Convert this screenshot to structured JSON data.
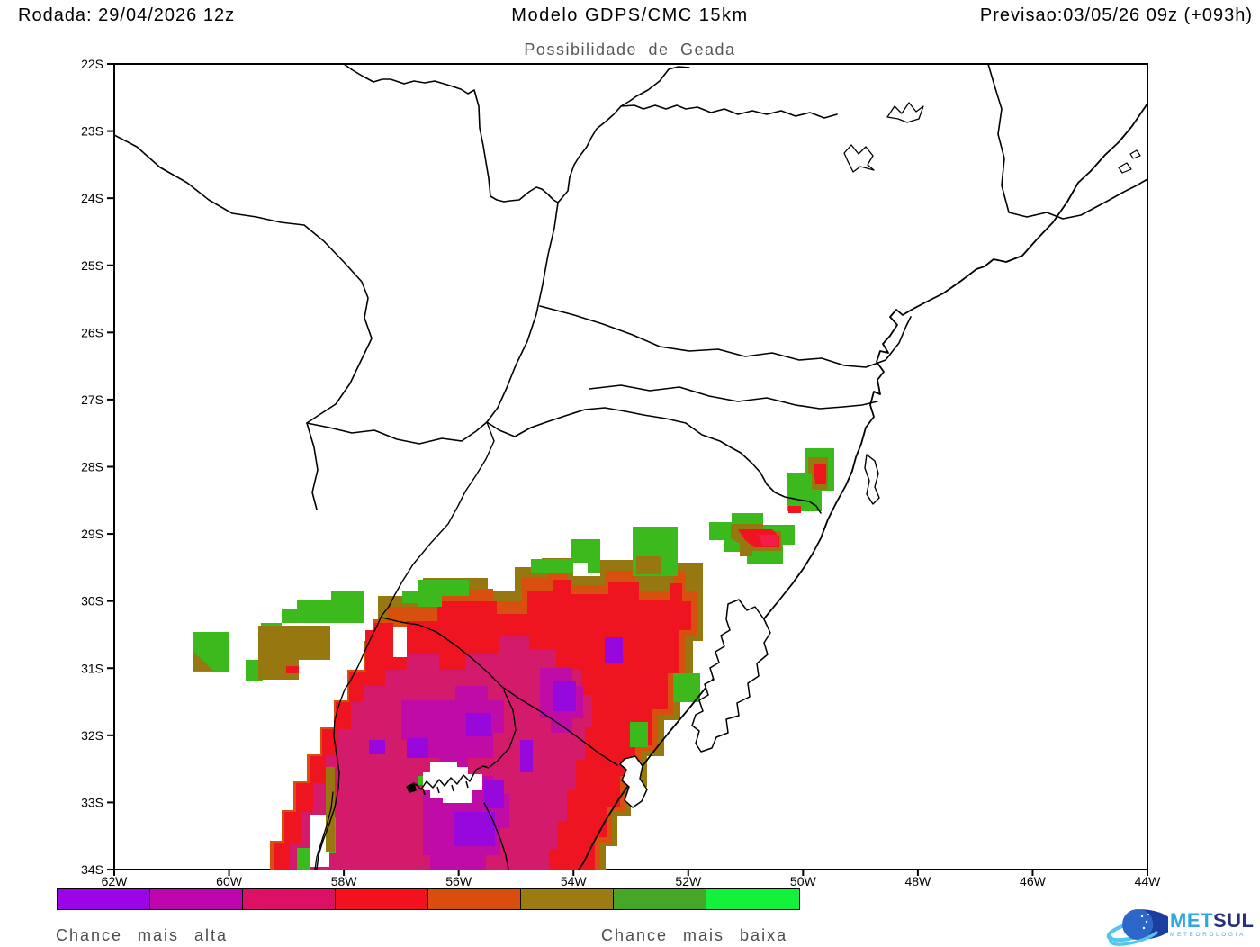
{
  "header": {
    "run": "Rodada: 29/04/2026 12z",
    "model": "Modelo GDPS/CMC 15km",
    "forecast": "Previsao:03/05/26 09z (+093h)"
  },
  "subtitle": "Possibilidade de Geada",
  "axes": {
    "lat_ticks": [
      "22S",
      "23S",
      "24S",
      "25S",
      "26S",
      "27S",
      "28S",
      "29S",
      "30S",
      "31S",
      "32S",
      "33S",
      "34S"
    ],
    "lon_ticks": [
      "62W",
      "60W",
      "58W",
      "56W",
      "54W",
      "52W",
      "50W",
      "48W",
      "46W",
      "44W"
    ]
  },
  "legend": {
    "colors": [
      "#9c04e8",
      "#bf06ae",
      "#dc1166",
      "#f2111c",
      "#d94d0e",
      "#9c7b12",
      "#45a627",
      "#12f23a"
    ],
    "label_high": "Chance mais alta",
    "label_low": "Chance mais baixa"
  },
  "map_colors": {
    "purple": "#9708dc",
    "magenta": "#c00ca6",
    "crimson": "#d41a6a",
    "red": "#ee1420",
    "core_red": "#f51b4b",
    "orange": "#d7500e",
    "olive": "#977710",
    "green": "#3cb91c",
    "white": "#ffffff",
    "black": "#000000"
  },
  "logo": {
    "met": "MET",
    "sul": "SUL",
    "sub": "METEOROLOGIA"
  },
  "map_data": {
    "type": "filled-contour-map",
    "variable": "Possibilidade de Geada (frost probability)",
    "lat_range": [
      "22S",
      "34S"
    ],
    "lon_range": [
      "62W",
      "44W"
    ],
    "scale_meaning": "purple/magenta = chance mais alta; olive/green = chance mais baixa",
    "regions": [
      "Extensa area de geada sobre oeste e centro do Rio Grande do Sul, Uruguai e nordeste da Argentina (~29S-34S, 58W-52W), com nucleos roxos (chance mais alta) entre 31S-33.5S / 57W-55W ao redor do reservatorio Rincon del Bonete",
      "Faixa externa verde/oliva (chance mais baixa) no norte do bloco, entre 29.5S-31S",
      "Manchas isoladas verde/oliva/vermelho na Serra catarinense e nordeste do RS (~28S-29.5S, 52W-50W)",
      "Quadrados verdes isolados a oeste (~30.5S-31S, 60.5W-58.5W)"
    ]
  }
}
